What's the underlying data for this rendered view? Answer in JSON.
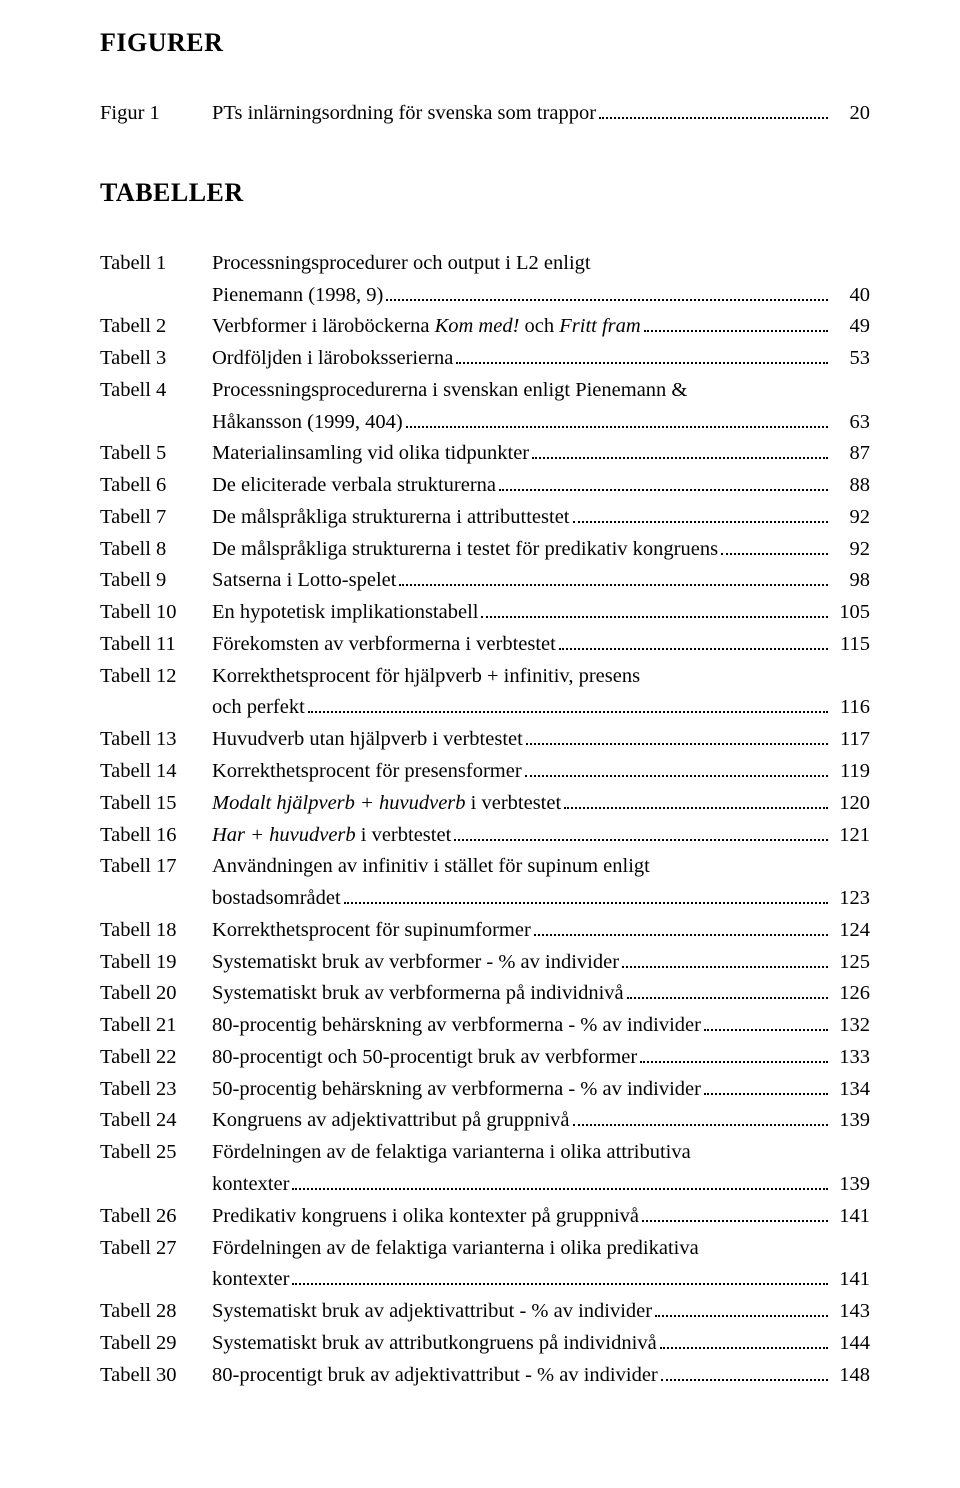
{
  "headings": {
    "figurer": "FIGURER",
    "tabeller": "TABELLER"
  },
  "figures": [
    {
      "label": "Figur 1",
      "title": "PTs inlärningsordning för svenska som trappor",
      "page": "20"
    }
  ],
  "tables": [
    {
      "label": "Tabell 1",
      "lines": [
        {
          "text": "Processningsprocedurer och output i L2 enligt"
        },
        {
          "text": "Pienemann (1998, 9)",
          "page": "40"
        }
      ]
    },
    {
      "label": "Tabell 2",
      "lines": [
        {
          "pre": "Verbformer i läroböckerna ",
          "italic": "Kom med!",
          "mid": " och ",
          "italic2": "Fritt fram",
          "page": "49"
        }
      ]
    },
    {
      "label": "Tabell 3",
      "lines": [
        {
          "text": "Ordföljden i läroboksserierna",
          "page": "53"
        }
      ]
    },
    {
      "label": "Tabell 4",
      "lines": [
        {
          "text": "Processningsprocedurerna i svenskan enligt Pienemann &"
        },
        {
          "text": "Håkansson  (1999, 404)",
          "page": "63"
        }
      ]
    },
    {
      "label": "Tabell 5",
      "lines": [
        {
          "text": "Materialinsamling vid olika tidpunkter",
          "page": "87"
        }
      ]
    },
    {
      "label": "Tabell 6",
      "lines": [
        {
          "text": "De eliciterade verbala strukturerna",
          "page": "88"
        }
      ]
    },
    {
      "label": "Tabell 7",
      "lines": [
        {
          "text": "De målspråkliga strukturerna i attributtestet",
          "page": "92"
        }
      ]
    },
    {
      "label": "Tabell 8",
      "lines": [
        {
          "text": "De målspråkliga strukturerna i testet för predikativ kongruens",
          "page": "92"
        }
      ]
    },
    {
      "label": "Tabell 9",
      "lines": [
        {
          "text": "Satserna i Lotto-spelet",
          "page": "98"
        }
      ]
    },
    {
      "label": "Tabell 10",
      "lines": [
        {
          "text": "En hypotetisk implikationstabell",
          "page": "105"
        }
      ]
    },
    {
      "label": "Tabell 11",
      "lines": [
        {
          "text": "Förekomsten av verbformerna i verbtestet",
          "page": "115"
        }
      ]
    },
    {
      "label": "Tabell 12",
      "lines": [
        {
          "text": "Korrekthetsprocent för hjälpverb + infinitiv, presens"
        },
        {
          "text": "och perfekt",
          "page": "116"
        }
      ]
    },
    {
      "label": "Tabell 13",
      "lines": [
        {
          "text": "Huvudverb utan hjälpverb i verbtestet",
          "page": "117"
        }
      ]
    },
    {
      "label": "Tabell 14",
      "lines": [
        {
          "text": "Korrekthetsprocent för presensformer",
          "page": "119"
        }
      ]
    },
    {
      "label": "Tabell 15",
      "lines": [
        {
          "italic": "Modalt hjälpverb + huvudverb",
          "post": " i verbtestet",
          "page": "120"
        }
      ]
    },
    {
      "label": "Tabell 16",
      "lines": [
        {
          "italic": "Har + huvudverb",
          "post": " i verbtestet",
          "page": "121"
        }
      ]
    },
    {
      "label": "Tabell 17",
      "lines": [
        {
          "text": "Användningen av infinitiv i stället för supinum enligt"
        },
        {
          "text": "bostadsområdet",
          "page": "123"
        }
      ]
    },
    {
      "label": "Tabell 18",
      "lines": [
        {
          "text": "Korrekthetsprocent för supinumformer",
          "page": "124"
        }
      ]
    },
    {
      "label": "Tabell 19",
      "lines": [
        {
          "text": "Systematiskt bruk av verbformer - % av individer",
          "page": "125"
        }
      ]
    },
    {
      "label": "Tabell 20",
      "lines": [
        {
          "text": "Systematiskt bruk av verbformerna på individnivå",
          "page": "126"
        }
      ]
    },
    {
      "label": "Tabell 21",
      "lines": [
        {
          "text": "80-procentig behärskning av verbformerna - % av individer",
          "page": "132"
        }
      ]
    },
    {
      "label": "Tabell 22",
      "lines": [
        {
          "text": "80-procentigt och 50-procentigt bruk av verbformer",
          "page": "133"
        }
      ]
    },
    {
      "label": "Tabell 23",
      "lines": [
        {
          "text": "50-procentig behärskning av verbformerna - % av individer",
          "page": "134"
        }
      ]
    },
    {
      "label": "Tabell 24",
      "lines": [
        {
          "text": "Kongruens av adjektivattribut på gruppnivå",
          "page": "139"
        }
      ]
    },
    {
      "label": "Tabell 25",
      "lines": [
        {
          "text": "Fördelningen av de felaktiga varianterna i olika attributiva"
        },
        {
          "text": "kontexter",
          "page": "139"
        }
      ]
    },
    {
      "label": "Tabell 26",
      "lines": [
        {
          "text": "Predikativ kongruens i olika kontexter på gruppnivå",
          "page": "141"
        }
      ]
    },
    {
      "label": "Tabell 27",
      "lines": [
        {
          "text": "Fördelningen av de felaktiga varianterna i olika predikativa"
        },
        {
          "text": "kontexter",
          "page": "141"
        }
      ]
    },
    {
      "label": "Tabell 28",
      "lines": [
        {
          "text": "Systematiskt bruk av adjektivattribut - % av individer",
          "page": "143"
        }
      ]
    },
    {
      "label": "Tabell 29",
      "lines": [
        {
          "text": "Systematiskt bruk av attributkongruens på individnivå",
          "page": "144"
        }
      ]
    },
    {
      "label": "Tabell 30",
      "lines": [
        {
          "text": "80-procentigt bruk av adjektivattribut - % av individer",
          "page": "148"
        }
      ]
    }
  ]
}
